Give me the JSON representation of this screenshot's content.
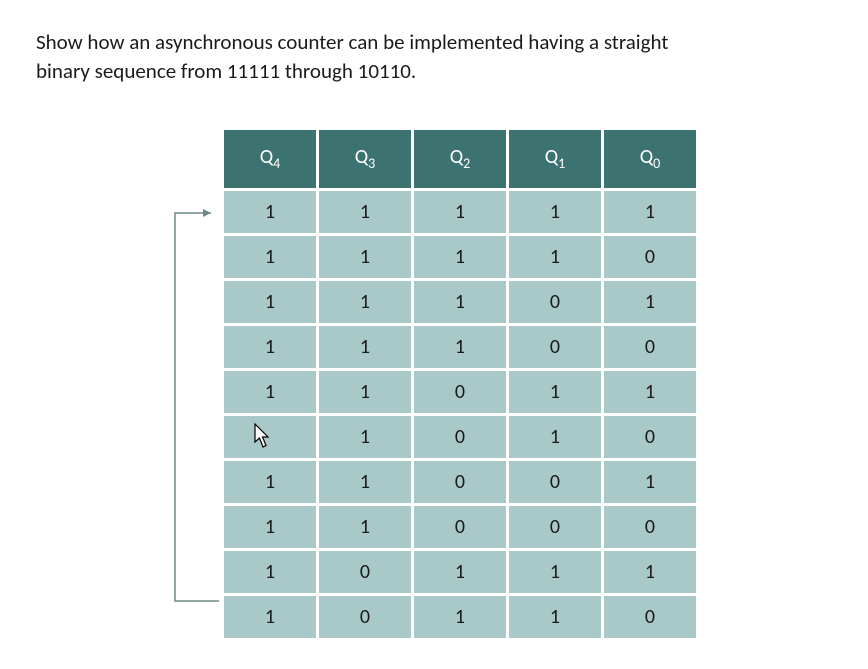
{
  "question_text": "Show how an asynchronous counter can be implemented having a straight binary sequence from 11111 through 10110.",
  "table": {
    "header_base": "Q",
    "header_subs": [
      "4",
      "3",
      "2",
      "1",
      "0"
    ],
    "rows": [
      [
        "1",
        "1",
        "1",
        "1",
        "1"
      ],
      [
        "1",
        "1",
        "1",
        "1",
        "0"
      ],
      [
        "1",
        "1",
        "1",
        "0",
        "1"
      ],
      [
        "1",
        "1",
        "1",
        "0",
        "0"
      ],
      [
        "1",
        "1",
        "0",
        "1",
        "1"
      ],
      [
        "",
        "1",
        "0",
        "1",
        "0"
      ],
      [
        "1",
        "1",
        "0",
        "0",
        "1"
      ],
      [
        "1",
        "1",
        "0",
        "0",
        "0"
      ],
      [
        "1",
        "0",
        "1",
        "1",
        "1"
      ],
      [
        "1",
        "0",
        "1",
        "1",
        "0"
      ]
    ],
    "header_bg": "#3c7270",
    "header_fg": "#ffffff",
    "cell_bg": "#a9c9c8",
    "cell_fg": "#1a1a1a",
    "cursor_row": 5,
    "cursor_col": 0
  },
  "arrow_color": "#6b8a89"
}
